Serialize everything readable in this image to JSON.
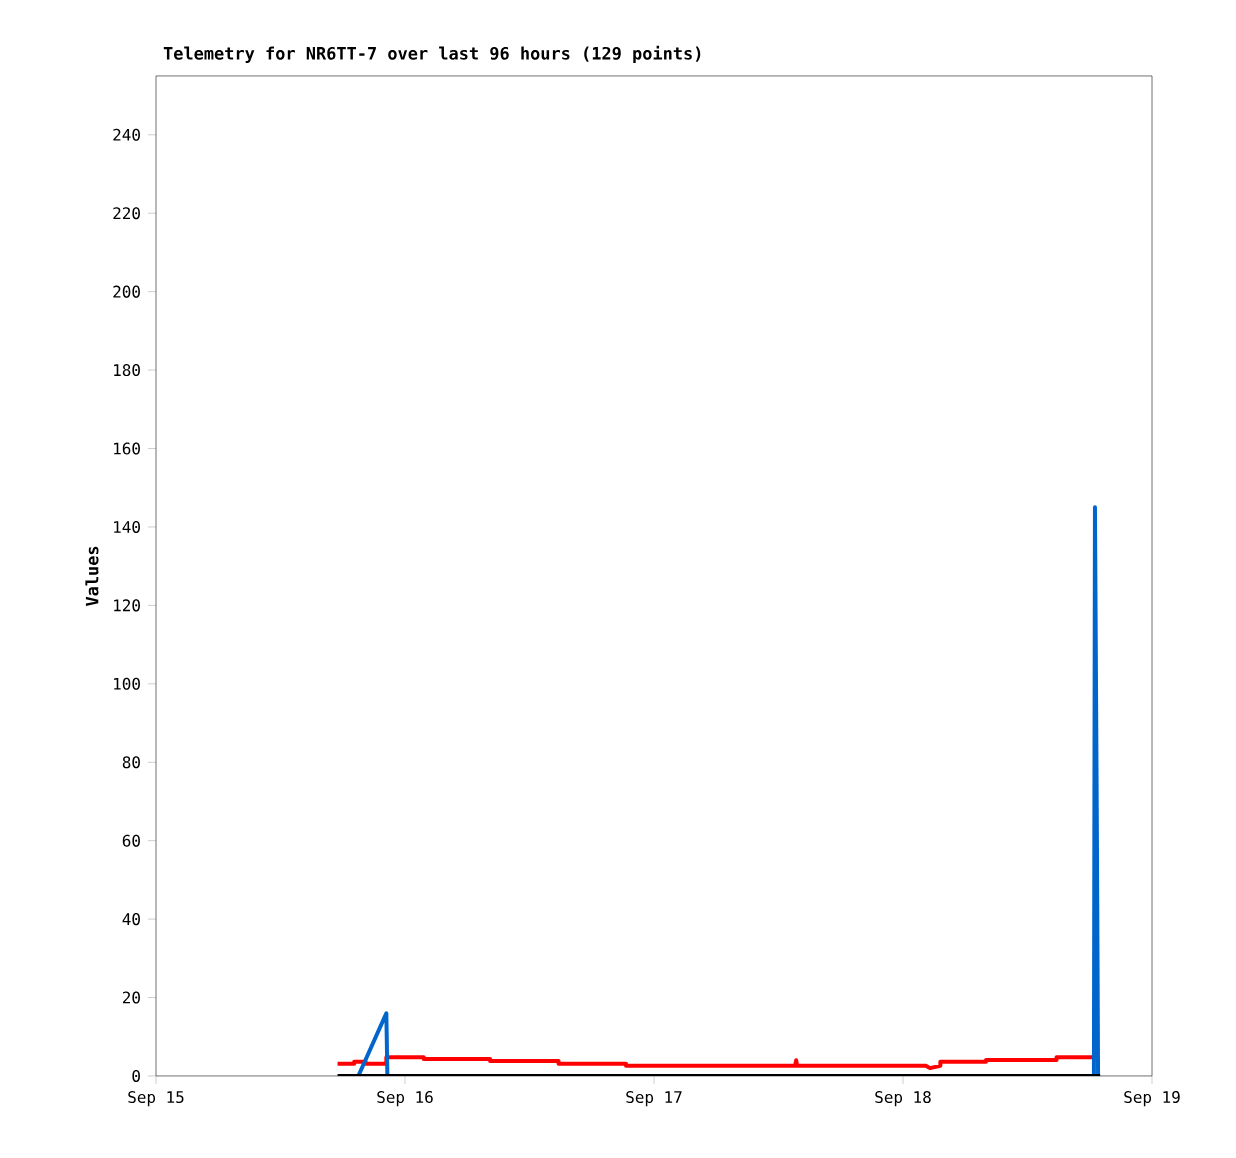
{
  "chart_data": {
    "type": "line",
    "title": "Telemetry for NR6TT-7 over last 96 hours (129 points)",
    "ylabel": "Values",
    "xlim": [
      "--09-15",
      "--09-19"
    ],
    "xticks": [
      {
        "value": "--09-15",
        "label": "Sep 15"
      },
      {
        "value": "--09-16",
        "label": "Sep 16"
      },
      {
        "value": "--09-17",
        "label": "Sep 17"
      },
      {
        "value": "--09-18",
        "label": "Sep 18"
      },
      {
        "value": "--09-19",
        "label": "Sep 19"
      }
    ],
    "ylim": [
      0,
      255
    ],
    "yticks": [
      0,
      20,
      40,
      60,
      80,
      100,
      120,
      140,
      160,
      180,
      200,
      220,
      240
    ],
    "grid": false,
    "marker": "none",
    "series": [
      {
        "color": "#ff0000",
        "x": [
          "--09-15T17:30",
          "--09-15T19:06",
          "--09-15T19:06",
          "--09-15T20:12",
          "--09-15T20:12",
          "--09-15T22:12",
          "--09-15T22:12",
          "--09-16T01:48",
          "--09-16T01:48",
          "--09-16T08:12",
          "--09-16T08:12",
          "--09-16T14:48",
          "--09-16T14:48",
          "--09-16T21:18",
          "--09-16T21:18",
          "--09-17T13:36",
          "--09-17T13:42",
          "--09-17T13:48",
          "--09-18T02:12",
          "--09-18T02:36",
          "--09-18T03:36",
          "--09-18T03:36",
          "--09-18T08:00",
          "--09-18T08:00",
          "--09-18T14:48",
          "--09-18T14:48",
          "--09-18T18:24"
        ],
        "values": [
          3.1,
          3.1,
          3.6,
          3.6,
          3.1,
          3.1,
          4.8,
          4.8,
          4.3,
          4.3,
          3.8,
          3.8,
          3.1,
          3.1,
          2.6,
          2.6,
          4.0,
          2.6,
          2.6,
          2.0,
          2.6,
          3.6,
          3.6,
          4.1,
          4.1,
          4.8,
          4.8
        ]
      },
      {
        "color": "#0066cc",
        "x": [
          "--09-15T19:30",
          "--09-15T22:12",
          "--09-15T22:18",
          null,
          "--09-18T18:24",
          "--09-18T18:30",
          "--09-18T18:42",
          "--09-18T18:48"
        ],
        "values": [
          0,
          16,
          0,
          null,
          0,
          145,
          56,
          0
        ]
      },
      {
        "color": "#000000",
        "x": [
          "--09-15T17:30",
          "--09-18T19:00"
        ],
        "values": [
          0,
          0
        ]
      }
    ]
  }
}
